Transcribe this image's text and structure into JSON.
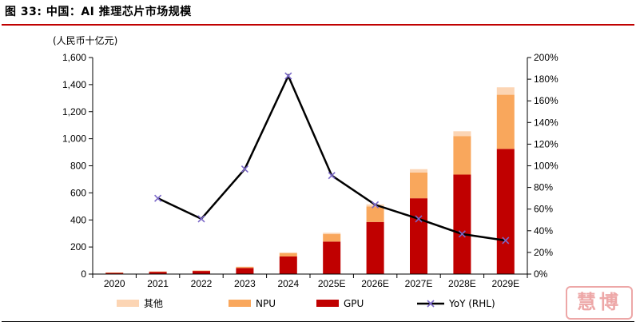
{
  "header": {
    "title": "图 33: 中国：AI 推理芯片市场规模"
  },
  "watermark": {
    "text": "慧博"
  },
  "chart_data": {
    "type": "bar",
    "stacked": true,
    "y_unit_label": "(人民币十亿元)",
    "categories": [
      "2020",
      "2021",
      "2022",
      "2023",
      "2024",
      "2025E",
      "2026E",
      "2027E",
      "2028E",
      "2029E"
    ],
    "ylim": [
      0,
      1600
    ],
    "y_ticks": [
      0,
      200,
      400,
      600,
      800,
      1000,
      1200,
      1400,
      1600
    ],
    "y_tick_labels": [
      "0",
      "200",
      "400",
      "600",
      "800",
      "1,000",
      "1,200",
      "1,400",
      "1,600"
    ],
    "y2lim": [
      0,
      200
    ],
    "y2_ticks": [
      0,
      20,
      40,
      60,
      80,
      100,
      120,
      140,
      160,
      180,
      200
    ],
    "y2_tick_labels": [
      "0%",
      "20%",
      "40%",
      "60%",
      "80%",
      "100%",
      "120%",
      "140%",
      "160%",
      "180%",
      "200%"
    ],
    "series": [
      {
        "name": "GPU",
        "kind": "bar",
        "color": "#c00000",
        "values": [
          10,
          17,
          23,
          45,
          130,
          240,
          385,
          560,
          735,
          925
        ]
      },
      {
        "name": "NPU",
        "kind": "bar",
        "color": "#f9a75c",
        "values": [
          1,
          2,
          3,
          8,
          25,
          55,
          115,
          190,
          285,
          400
        ]
      },
      {
        "name": "其他",
        "kind": "bar",
        "color": "#fcd5b4",
        "values": [
          0,
          0,
          0,
          2,
          5,
          10,
          15,
          25,
          35,
          55
        ]
      },
      {
        "name": "YoY (RHL)",
        "kind": "line",
        "axis": "right",
        "color": "#000000",
        "marker_color": "#7b68c8",
        "values": [
          null,
          70,
          51,
          97,
          183,
          91,
          64,
          51,
          37,
          31
        ]
      }
    ],
    "legend": [
      "其他",
      "NPU",
      "GPU",
      "YoY (RHL)"
    ]
  }
}
